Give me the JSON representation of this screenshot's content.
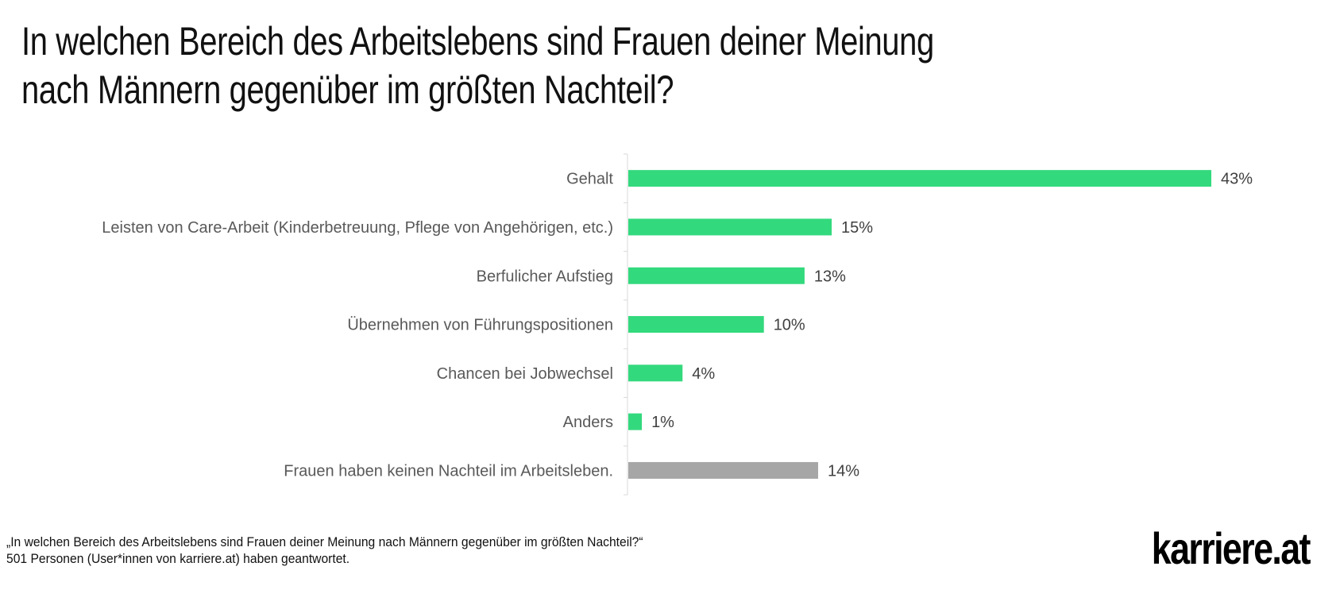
{
  "title_lines": [
    "In welchen Bereich des Arbeitslebens sind Frauen deiner Meinung",
    "nach Männern gegenüber im größten Nachteil?"
  ],
  "chart_data": {
    "type": "bar",
    "orientation": "horizontal",
    "title": "In welchen Bereich des Arbeitslebens sind Frauen deiner Meinung nach Männern gegenüber im größten Nachteil?",
    "categories": [
      "Gehalt",
      "Leisten von Care-Arbeit (Kinderbetreuung, Pflege von Angehörigen, etc.)",
      "Berfulicher Aufstieg",
      "Übernehmen von Führungspositionen",
      "Chancen bei Jobwechsel",
      "Anders",
      "Frauen haben keinen Nachteil im Arbeitsleben."
    ],
    "values": [
      43,
      15,
      13,
      10,
      4,
      1,
      14
    ],
    "data_labels": [
      "43%",
      "15%",
      "13%",
      "10%",
      "4%",
      "1%",
      "14%"
    ],
    "unit": "%",
    "colors": [
      "#33d97d",
      "#33d97d",
      "#33d97d",
      "#33d97d",
      "#33d97d",
      "#33d97d",
      "#a6a6a6"
    ],
    "xlim": [
      0,
      43
    ],
    "grid": false,
    "legend": "none"
  },
  "footer": {
    "question": "„In welchen Bereich des Arbeitslebens sind Frauen deiner Meinung nach Männern gegenüber im größten Nachteil?“",
    "respondents": "501 Personen (User*innen von karriere.at) haben geantwortet."
  },
  "logo": "karriere.at"
}
